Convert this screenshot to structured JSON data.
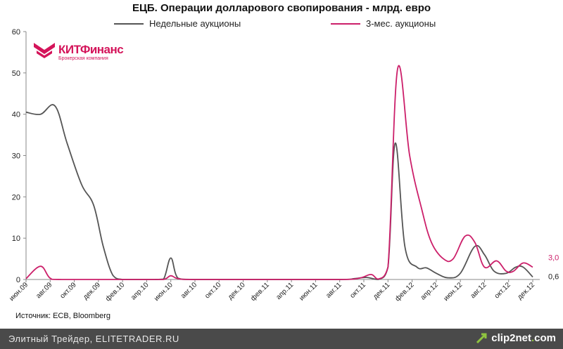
{
  "chart_data": {
    "type": "line",
    "title": "ЕЦБ. Операции долларового свопирования - млрд. евро",
    "ylim": [
      0,
      60
    ],
    "yticks": [
      "0",
      "10",
      "20",
      "30",
      "40",
      "50",
      "60"
    ],
    "xticks": [
      "июн.09",
      "авг.09",
      "окт.09",
      "дек.09",
      "фев.10",
      "апр.10",
      "июн.10",
      "авг.10",
      "окт.10",
      "дек.10",
      "фев.11",
      "апр.11",
      "июн.11",
      "авг.11",
      "окт.11",
      "дек.11",
      "фев.12",
      "апр.12",
      "июн.12",
      "авг.12",
      "окт.12",
      "дек.12"
    ],
    "legend_position": "top",
    "grid": false,
    "series": [
      {
        "name": "Недельные аукционы",
        "color": "#555555",
        "end_label": "0,6",
        "points": [
          [
            0,
            40.5
          ],
          [
            0.6,
            40
          ],
          [
            1.2,
            42
          ],
          [
            1.7,
            33
          ],
          [
            2.3,
            23
          ],
          [
            2.8,
            18
          ],
          [
            3.2,
            8
          ],
          [
            3.6,
            1
          ],
          [
            4.0,
            0
          ],
          [
            4.8,
            0
          ],
          [
            5.3,
            0
          ],
          [
            5.7,
            0.1
          ],
          [
            6.0,
            5.2
          ],
          [
            6.3,
            0.3
          ],
          [
            7,
            0
          ],
          [
            10,
            0
          ],
          [
            13,
            0
          ],
          [
            13.6,
            0.2
          ],
          [
            14.1,
            0.5
          ],
          [
            14.6,
            0
          ],
          [
            15.0,
            3
          ],
          [
            15.3,
            33
          ],
          [
            15.7,
            8
          ],
          [
            16.2,
            3
          ],
          [
            16.6,
            2.8
          ],
          [
            17,
            1.5
          ],
          [
            17.5,
            0.4
          ],
          [
            18,
            1.5
          ],
          [
            18.6,
            8
          ],
          [
            19.0,
            6
          ],
          [
            19.4,
            2
          ],
          [
            19.9,
            1.5
          ],
          [
            20.3,
            3
          ],
          [
            20.6,
            3
          ],
          [
            21,
            0.6
          ]
        ]
      },
      {
        "name": "3-мес. аукционы",
        "color": "#cc1f6a",
        "end_label": "3,0",
        "points": [
          [
            0,
            0.2
          ],
          [
            0.6,
            3.2
          ],
          [
            1.0,
            0.3
          ],
          [
            1.5,
            0
          ],
          [
            5,
            0
          ],
          [
            5.7,
            0
          ],
          [
            6.0,
            0.9
          ],
          [
            6.3,
            0.2
          ],
          [
            7,
            0
          ],
          [
            10,
            0
          ],
          [
            13,
            0
          ],
          [
            13.8,
            0.3
          ],
          [
            14.3,
            1.2
          ],
          [
            14.6,
            0.1
          ],
          [
            15.0,
            3
          ],
          [
            15.4,
            51
          ],
          [
            15.9,
            30
          ],
          [
            16.4,
            17
          ],
          [
            16.8,
            9
          ],
          [
            17.3,
            5
          ],
          [
            17.7,
            5
          ],
          [
            18.2,
            10.5
          ],
          [
            18.6,
            9
          ],
          [
            19.0,
            3
          ],
          [
            19.5,
            4.5
          ],
          [
            19.9,
            2
          ],
          [
            20.2,
            2
          ],
          [
            20.6,
            4
          ],
          [
            21,
            3
          ]
        ]
      }
    ],
    "source": "Источник: ECB, Bloomberg"
  },
  "logo": {
    "name": "КИТФинанс",
    "sub": "Брокерская компания"
  },
  "footer": {
    "text": "Элитный Трейдер, ELITETRADER.RU",
    "brand_a": "clip2net",
    "brand_dot": ".",
    "brand_b": "com"
  }
}
